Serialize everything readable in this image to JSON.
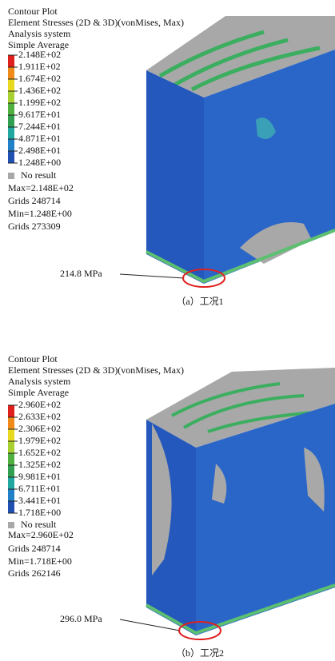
{
  "panels": [
    {
      "header": [
        "Contour Plot",
        "Element Stresses (2D & 3D)(vonMises, Max)",
        "Analysis system",
        "Simple Average"
      ],
      "legend": {
        "labels": [
          "2.148E+02",
          "1.911E+02",
          "1.674E+02",
          "1.436E+02",
          "1.199E+02",
          "9.617E+01",
          "7.244E+01",
          "4.871E+01",
          "2.498E+01",
          "1.248E+00"
        ],
        "colors": [
          "#e0201c",
          "#f08a1a",
          "#e8d820",
          "#a8d030",
          "#50b040",
          "#30a050",
          "#20a8a0",
          "#2080c8",
          "#2050b0"
        ],
        "no_result": "No result"
      },
      "stats": [
        "Max=2.148E+02",
        "Grids 248714",
        "Min=1.248E+00",
        "Grids 273309"
      ],
      "annotation": "214.8 MPa",
      "caption": "（a）工况1"
    },
    {
      "header": [
        "Contour Plot",
        "Element Stresses (2D & 3D)(vonMises, Max)",
        "Analysis system",
        "Simple Average"
      ],
      "legend": {
        "labels": [
          "2.960E+02",
          "2.633E+02",
          "2.306E+02",
          "1.979E+02",
          "1.652E+02",
          "1.325E+02",
          "9.981E+01",
          "6.711E+01",
          "3.441E+01",
          "1.718E+00"
        ],
        "colors": [
          "#e0201c",
          "#f08a1a",
          "#e8d820",
          "#a8d030",
          "#50b040",
          "#30a050",
          "#20a8a0",
          "#2080c8",
          "#2050b0"
        ],
        "no_result": "No result"
      },
      "stats": [
        "Max=2.960E+02",
        "Grids 248714",
        "Min=1.718E+00",
        "Grids 262146"
      ],
      "annotation": "296.0 MPa",
      "caption": "（b）工况2"
    }
  ]
}
